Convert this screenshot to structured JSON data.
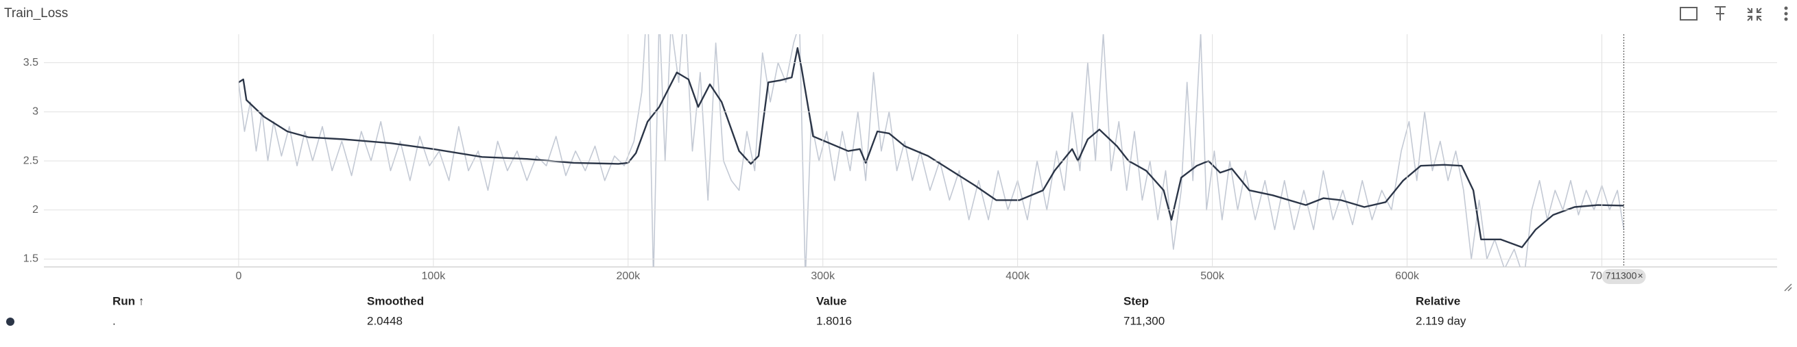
{
  "chart_data": {
    "type": "line",
    "title": "Train_Loss",
    "xlim": [
      -100000,
      790000
    ],
    "ylim": [
      1.42,
      3.79
    ],
    "xticks": [
      0,
      {
        "value": 100000,
        "label": "100k"
      },
      {
        "value": 200000,
        "label": "200k"
      },
      {
        "value": 300000,
        "label": "300k"
      },
      {
        "value": 400000,
        "label": "400k"
      },
      {
        "value": 500000,
        "label": "500k"
      },
      {
        "value": 600000,
        "label": "600k"
      },
      {
        "value": 700000,
        "label": "700k"
      }
    ],
    "yticks": [
      1.5,
      2,
      2.5,
      3,
      3.5
    ],
    "grid": true,
    "hover_step": 711300,
    "series": [
      {
        "name": "raw",
        "color": "#c3c9d4",
        "x": [
          0,
          3000,
          6000,
          9000,
          12000,
          15000,
          18000,
          22000,
          26000,
          30000,
          34000,
          38000,
          43000,
          48000,
          53000,
          58000,
          63000,
          68000,
          73000,
          78000,
          83000,
          88000,
          93000,
          98000,
          103000,
          108000,
          113000,
          118000,
          123000,
          128000,
          133000,
          138000,
          143000,
          148000,
          153000,
          158000,
          163000,
          168000,
          173000,
          178000,
          183000,
          188000,
          193000,
          198000,
          203000,
          207000,
          210000,
          213000,
          216000,
          219000,
          222000,
          226000,
          229000,
          233000,
          237000,
          241000,
          245000,
          249000,
          253000,
          257000,
          261000,
          265000,
          269000,
          273000,
          277000,
          281000,
          285000,
          288000,
          291000,
          294000,
          298000,
          302000,
          306000,
          310000,
          314000,
          318000,
          322000,
          326000,
          330000,
          334000,
          338000,
          342000,
          346000,
          350000,
          355000,
          360000,
          365000,
          370000,
          375000,
          380000,
          385000,
          390000,
          395000,
          400000,
          405000,
          410000,
          415000,
          420000,
          424000,
          428000,
          432000,
          436000,
          440000,
          444000,
          448000,
          452000,
          456000,
          460000,
          464000,
          468000,
          472000,
          476000,
          480000,
          484000,
          487000,
          490000,
          494000,
          497000,
          501000,
          505000,
          509000,
          513000,
          517000,
          522000,
          527000,
          532000,
          537000,
          542000,
          547000,
          552000,
          557000,
          562000,
          567000,
          572000,
          577000,
          582000,
          587000,
          592000,
          597000,
          601000,
          605000,
          609000,
          613000,
          617000,
          621000,
          625000,
          629000,
          633000,
          637000,
          641000,
          645000,
          650000,
          655000,
          660000,
          664000,
          668000,
          672000,
          676000,
          680000,
          684000,
          688000,
          692000,
          696000,
          700000,
          704000,
          708000,
          711300
        ],
        "values": [
          3.3,
          2.8,
          3.1,
          2.6,
          3.0,
          2.5,
          2.9,
          2.55,
          2.85,
          2.45,
          2.8,
          2.5,
          2.85,
          2.4,
          2.7,
          2.35,
          2.8,
          2.5,
          2.9,
          2.4,
          2.7,
          2.3,
          2.75,
          2.45,
          2.6,
          2.3,
          2.85,
          2.4,
          2.6,
          2.2,
          2.7,
          2.4,
          2.6,
          2.3,
          2.55,
          2.45,
          2.75,
          2.35,
          2.6,
          2.4,
          2.65,
          2.3,
          2.55,
          2.45,
          2.7,
          3.2,
          4.2,
          1.3,
          4.0,
          2.5,
          3.9,
          3.3,
          4.1,
          2.6,
          3.4,
          2.1,
          3.7,
          2.5,
          2.3,
          2.2,
          2.8,
          2.4,
          3.6,
          3.1,
          3.5,
          3.3,
          3.7,
          3.9,
          1.3,
          2.9,
          2.5,
          2.8,
          2.3,
          2.8,
          2.4,
          3.0,
          2.3,
          3.4,
          2.6,
          3.0,
          2.4,
          2.7,
          2.3,
          2.6,
          2.2,
          2.5,
          2.1,
          2.4,
          1.9,
          2.3,
          1.9,
          2.4,
          2.0,
          2.3,
          1.9,
          2.5,
          2.0,
          2.6,
          2.2,
          3.0,
          2.4,
          3.5,
          2.5,
          3.8,
          2.4,
          2.9,
          2.2,
          2.8,
          2.1,
          2.5,
          1.9,
          2.4,
          1.6,
          2.2,
          3.3,
          2.3,
          3.8,
          2.0,
          2.6,
          1.9,
          2.5,
          2.0,
          2.4,
          1.9,
          2.3,
          1.8,
          2.3,
          1.8,
          2.2,
          1.8,
          2.4,
          1.9,
          2.2,
          1.85,
          2.3,
          1.9,
          2.2,
          2.0,
          2.6,
          2.9,
          2.3,
          3.0,
          2.4,
          2.7,
          2.3,
          2.6,
          2.2,
          1.5,
          2.1,
          1.5,
          1.7,
          1.4,
          1.6,
          1.3,
          2.0,
          2.3,
          1.9,
          2.2,
          2.0,
          2.3,
          1.95,
          2.2,
          2.0,
          2.25,
          2.0,
          2.2,
          1.8016
        ]
      },
      {
        "name": "smoothed",
        "color": "#2b3547",
        "x": [
          0,
          2400,
          4000,
          13000,
          25000,
          36000,
          54000,
          78000,
          100000,
          125000,
          148000,
          172000,
          195000,
          200000,
          204000,
          210000,
          216000,
          225000,
          231000,
          236000,
          242000,
          248000,
          257000,
          263000,
          267000,
          272000,
          278000,
          284000,
          287000,
          289000,
          295000,
          301000,
          313000,
          319000,
          322000,
          328000,
          334000,
          342000,
          354000,
          366000,
          378000,
          389000,
          401000,
          413000,
          419000,
          428000,
          431000,
          436000,
          442000,
          451000,
          457000,
          466000,
          475000,
          479000,
          484000,
          492000,
          498000,
          504000,
          510000,
          519000,
          531000,
          548000,
          557000,
          566000,
          578000,
          589000,
          598000,
          607000,
          619000,
          628000,
          634000,
          638000,
          648000,
          659000,
          666000,
          675000,
          686000,
          698000,
          711300
        ],
        "values": [
          3.3,
          3.33,
          3.12,
          2.95,
          2.8,
          2.74,
          2.72,
          2.68,
          2.62,
          2.54,
          2.52,
          2.48,
          2.47,
          2.48,
          2.58,
          2.9,
          3.05,
          3.4,
          3.33,
          3.05,
          3.28,
          3.1,
          2.6,
          2.47,
          2.55,
          3.3,
          3.32,
          3.35,
          3.65,
          3.45,
          2.75,
          2.7,
          2.6,
          2.62,
          2.48,
          2.8,
          2.78,
          2.65,
          2.55,
          2.4,
          2.25,
          2.1,
          2.1,
          2.2,
          2.4,
          2.62,
          2.5,
          2.72,
          2.82,
          2.65,
          2.5,
          2.4,
          2.2,
          1.9,
          2.33,
          2.45,
          2.5,
          2.38,
          2.42,
          2.2,
          2.15,
          2.05,
          2.12,
          2.1,
          2.03,
          2.08,
          2.3,
          2.45,
          2.46,
          2.45,
          2.2,
          1.7,
          1.7,
          1.62,
          1.8,
          1.95,
          2.03,
          2.05,
          2.0448
        ]
      }
    ]
  },
  "table": {
    "headers": [
      "Run ↑",
      "Smoothed",
      "Value",
      "Step",
      "Relative"
    ],
    "row": [
      ".",
      "2.0448",
      "1.8016",
      "711,300",
      "2.119 day"
    ]
  }
}
